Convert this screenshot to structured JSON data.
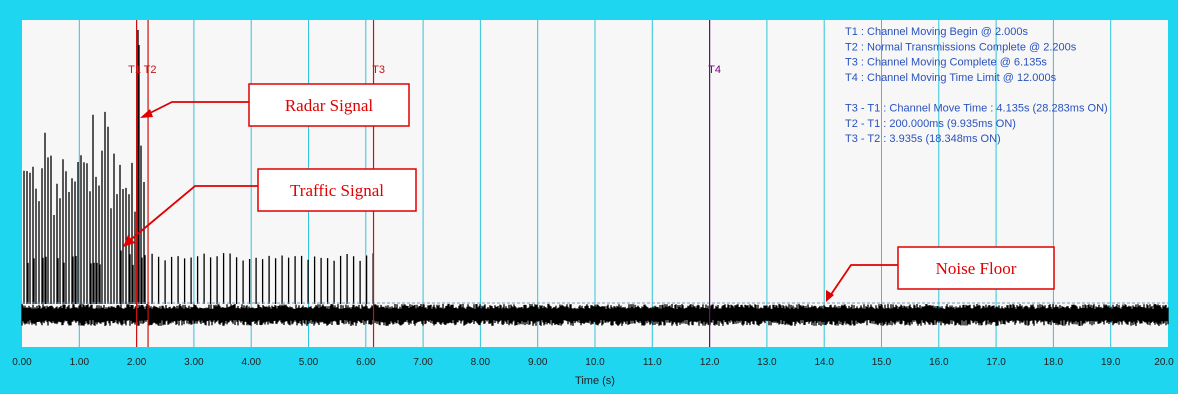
{
  "chart_data": {
    "type": "line",
    "xlabel": "Time (s)",
    "ylabel": "",
    "xlim": [
      0,
      20
    ],
    "x_ticks": [
      "0.00",
      "1.00",
      "2.00",
      "3.00",
      "4.00",
      "5.00",
      "6.00",
      "7.00",
      "8.00",
      "9.00",
      "10.0",
      "11.0",
      "12.0",
      "13.0",
      "14.0",
      "15.0",
      "16.0",
      "17.0",
      "18.0",
      "19.0",
      "20.0"
    ],
    "grid": true,
    "markers": [
      {
        "label": "T1",
        "x": 2.0,
        "color": "#cc1111"
      },
      {
        "label": "T2",
        "x": 2.2,
        "color": "#cc1111"
      },
      {
        "label": "T3",
        "x": 6.135,
        "color": "#cc1111"
      },
      {
        "label": "T4",
        "x": 12.0,
        "color": "#800080"
      }
    ],
    "info_text": [
      "T1 : Channel Moving Begin @ 2.000s",
      "T2 : Normal Transmissions Complete @ 2.200s",
      "T3 : Channel Moving Complete @ 6.135s",
      "T4 : Channel Moving Time Limit @ 12.000s",
      "",
      "T3 - T1 : Channel Move Time : 4.135s (28.283ms ON)",
      "T2 - T1 : 200.000ms (9.935ms ON)",
      "T3 - T2 : 3.935s (18.348ms ON)"
    ],
    "annotations": [
      {
        "text": "Radar Signal"
      },
      {
        "text": "Traffic Signal"
      },
      {
        "text": "Noise Floor"
      }
    ]
  },
  "colors": {
    "frame": "#1fd6f0",
    "plot_bg": "#f7f7f7",
    "grid": "#2ec4dc",
    "signal": "#000000",
    "callout": "#e00000",
    "info_text": "#2a52be"
  }
}
